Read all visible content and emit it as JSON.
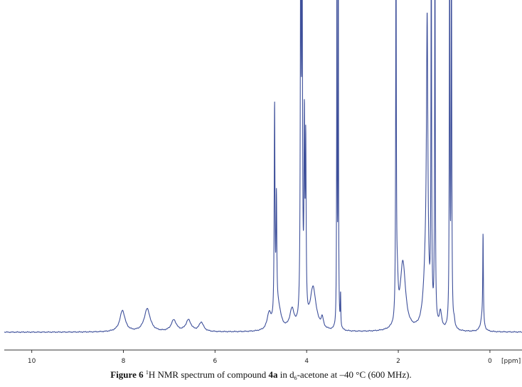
{
  "chart_data": {
    "type": "line",
    "xlabel": "[ppm]",
    "xlim": [
      10.6,
      -0.7
    ],
    "x_reversed": true,
    "x_ticks": [
      10,
      8,
      6,
      4,
      2,
      0
    ],
    "y_visible_max": 1.0,
    "baseline": 0,
    "line_color": "#3d4f9a",
    "peaks": [
      {
        "ppm": 8.02,
        "height": 0.065,
        "width": 0.07
      },
      {
        "ppm": 7.48,
        "height": 0.07,
        "width": 0.08
      },
      {
        "ppm": 6.9,
        "height": 0.035,
        "width": 0.07
      },
      {
        "ppm": 6.58,
        "height": 0.035,
        "width": 0.07
      },
      {
        "ppm": 6.3,
        "height": 0.028,
        "width": 0.06
      },
      {
        "ppm": 4.82,
        "height": 0.05,
        "width": 0.05
      },
      {
        "ppm": 4.7,
        "height": 0.65,
        "width": 0.01
      },
      {
        "ppm": 4.66,
        "height": 0.34,
        "width": 0.01
      },
      {
        "ppm": 4.62,
        "height": 0.07,
        "width": 0.07
      },
      {
        "ppm": 4.32,
        "height": 0.06,
        "width": 0.06
      },
      {
        "ppm": 4.13,
        "height": 1.2,
        "width": 0.01
      },
      {
        "ppm": 4.1,
        "height": 1.2,
        "width": 0.01
      },
      {
        "ppm": 4.05,
        "height": 0.58,
        "width": 0.01
      },
      {
        "ppm": 4.02,
        "height": 0.52,
        "width": 0.01
      },
      {
        "ppm": 3.86,
        "height": 0.13,
        "width": 0.08
      },
      {
        "ppm": 3.66,
        "height": 0.03,
        "width": 0.03
      },
      {
        "ppm": 3.34,
        "height": 1.2,
        "width": 0.006
      },
      {
        "ppm": 3.31,
        "height": 1.2,
        "width": 0.006
      },
      {
        "ppm": 3.26,
        "height": 0.1,
        "width": 0.006
      },
      {
        "ppm": 2.05,
        "height": 1.2,
        "width": 0.008
      },
      {
        "ppm": 2.02,
        "height": 0.1,
        "width": 0.02
      },
      {
        "ppm": 1.9,
        "height": 0.21,
        "width": 0.07
      },
      {
        "ppm": 1.37,
        "height": 0.82,
        "width": 0.018
      },
      {
        "ppm": 1.4,
        "height": 0.18,
        "width": 0.06
      },
      {
        "ppm": 1.28,
        "height": 1.2,
        "width": 0.008
      },
      {
        "ppm": 1.2,
        "height": 1.2,
        "width": 0.008
      },
      {
        "ppm": 1.08,
        "height": 0.05,
        "width": 0.03
      },
      {
        "ppm": 0.88,
        "height": 1.2,
        "width": 0.008
      },
      {
        "ppm": 0.84,
        "height": 1.2,
        "width": 0.008
      },
      {
        "ppm": 0.78,
        "height": 0.02,
        "width": 0.02
      },
      {
        "ppm": 0.15,
        "height": 0.27,
        "width": 0.008
      },
      {
        "ppm": 0.17,
        "height": 0.04,
        "width": 0.04
      }
    ]
  },
  "caption": {
    "label": "Figure",
    "number": "6",
    "nucleus_sup": "1",
    "text_a": "H NMR spectrum of compound ",
    "compound": "4a",
    "text_b": " in d",
    "solvent_sub": "6",
    "text_c": "-acetone at –40 °C (600 MHz)."
  }
}
